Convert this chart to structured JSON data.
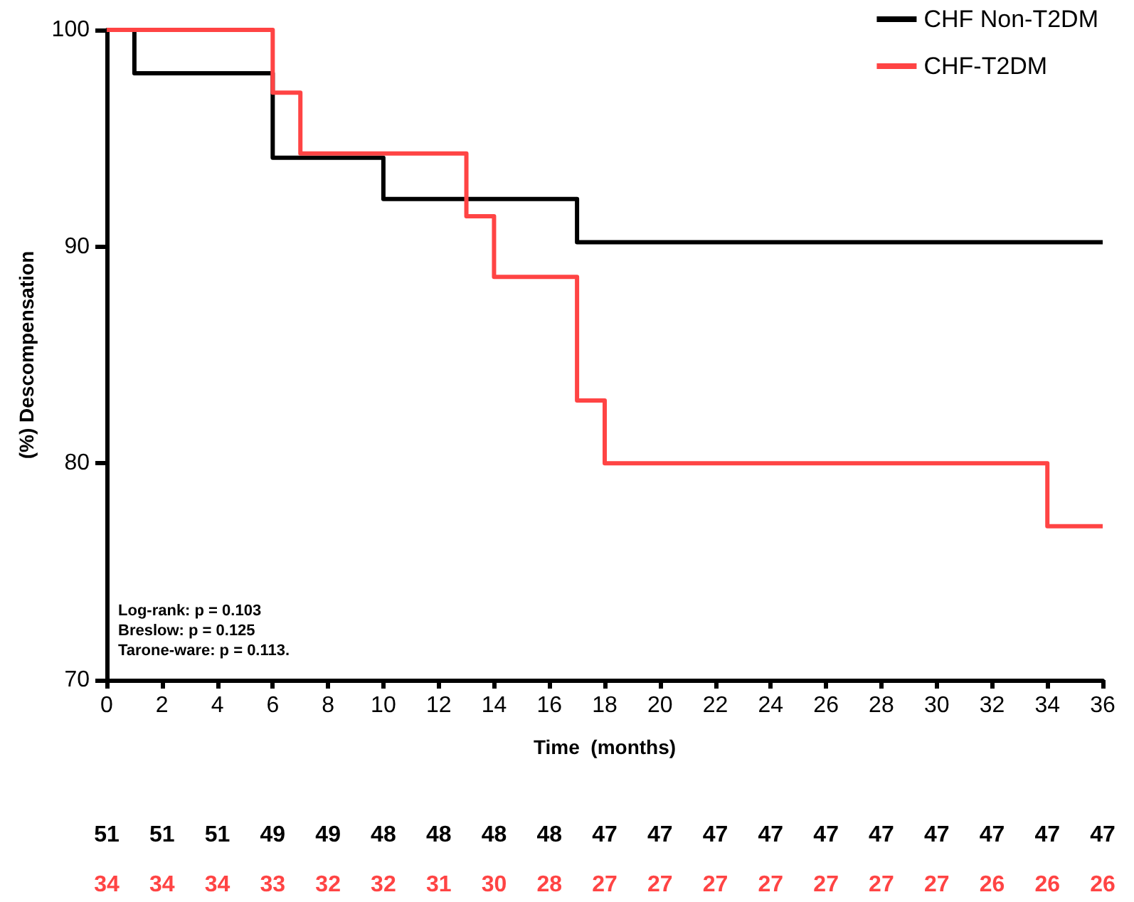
{
  "chart_data": {
    "type": "step",
    "xlabel": "Time  (months)",
    "ylabel": "(%) Descompensation",
    "xlim": [
      0,
      36
    ],
    "xticks": [
      0,
      2,
      4,
      6,
      8,
      10,
      12,
      14,
      16,
      18,
      20,
      22,
      24,
      26,
      28,
      30,
      32,
      34,
      36
    ],
    "ylim": [
      70,
      100
    ],
    "yticks": [
      70,
      80,
      90,
      100
    ],
    "grid": false,
    "legend": "top right",
    "marker": "none",
    "line_style": "solid",
    "series": [
      {
        "name": "CHF Non-T2DM",
        "color": "#000000",
        "x": [
          0,
          1,
          6,
          10,
          17,
          36
        ],
        "values": [
          100,
          98,
          94.1,
          92.2,
          90.2,
          90.2
        ]
      },
      {
        "name": "CHF-T2DM",
        "color": "#ff4444",
        "x": [
          0,
          6,
          7,
          13,
          14,
          17,
          18,
          34,
          36
        ],
        "values": [
          100,
          97.1,
          94.3,
          91.4,
          88.6,
          82.9,
          80,
          77.1,
          77.1
        ]
      }
    ],
    "annotations": [
      "Log-rank: p = 0.103",
      "Breslow: p = 0.125",
      "Tarone-ware: p = 0.113.",
      "51",
      "51",
      "51",
      "49",
      "49",
      "48",
      "48",
      "48",
      "48",
      "47",
      "47",
      "47",
      "47",
      "47",
      "47",
      "47",
      "47",
      "47",
      "47",
      "34",
      "34",
      "34",
      "33",
      "32",
      "32",
      "31",
      "30",
      "28",
      "27",
      "27",
      "27",
      "27",
      "27",
      "27",
      "27",
      "26",
      "26",
      "26"
    ]
  }
}
